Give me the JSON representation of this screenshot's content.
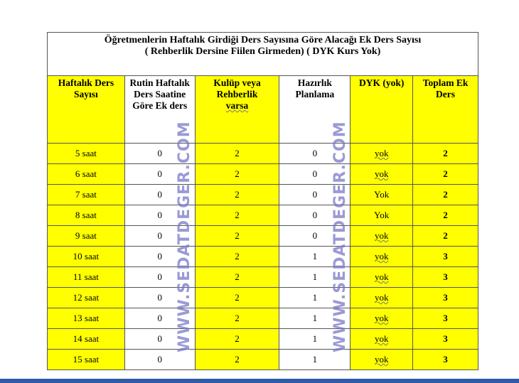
{
  "title_line1": "Öğretmenlerin Haftalık Girdiği Ders Sayısına Göre Alacağı Ek Ders Sayısı",
  "title_line2": "( Rehberlik Dersine Fiilen Girmeden) ( DYK Kurs Yok)",
  "headers": [
    "Haftalık Ders Sayısı",
    "Rutin Haftalık Ders Saatine Göre Ek ders",
    "Kulüp veya Rehberlik",
    "varsa",
    "Hazırlık Planlama",
    "DYK (yok)",
    "Toplam Ek Ders"
  ],
  "rows": [
    [
      "5 saat",
      "0",
      "2",
      "0",
      "yok",
      "2"
    ],
    [
      "6 saat",
      "0",
      "2",
      "0",
      "yok",
      "2"
    ],
    [
      "7 saat",
      "0",
      "2",
      "0",
      "Yok",
      "2"
    ],
    [
      "8 saat",
      "0",
      "2",
      "0",
      "Yok",
      "2"
    ],
    [
      "9 saat",
      "0",
      "2",
      "0",
      "yok",
      "2"
    ],
    [
      "10 saat",
      "0",
      "2",
      "1",
      "yok",
      "3"
    ],
    [
      "11 saat",
      "0",
      "2",
      "1",
      "yok",
      "3"
    ],
    [
      "12 saat",
      "0",
      "2",
      "1",
      "yok",
      "3"
    ],
    [
      "13 saat",
      "0",
      "2",
      "1",
      "yok",
      "3"
    ],
    [
      "14 saat",
      "0",
      "2",
      "1",
      "yok",
      "3"
    ],
    [
      "15 saat",
      "0",
      "2",
      "1",
      "yok",
      "3"
    ]
  ],
  "watermark": "WWW.SEDATDEGER.COM",
  "colors": {
    "highlight": "#ffff00",
    "bottom_bar": "#2e5aa8"
  }
}
